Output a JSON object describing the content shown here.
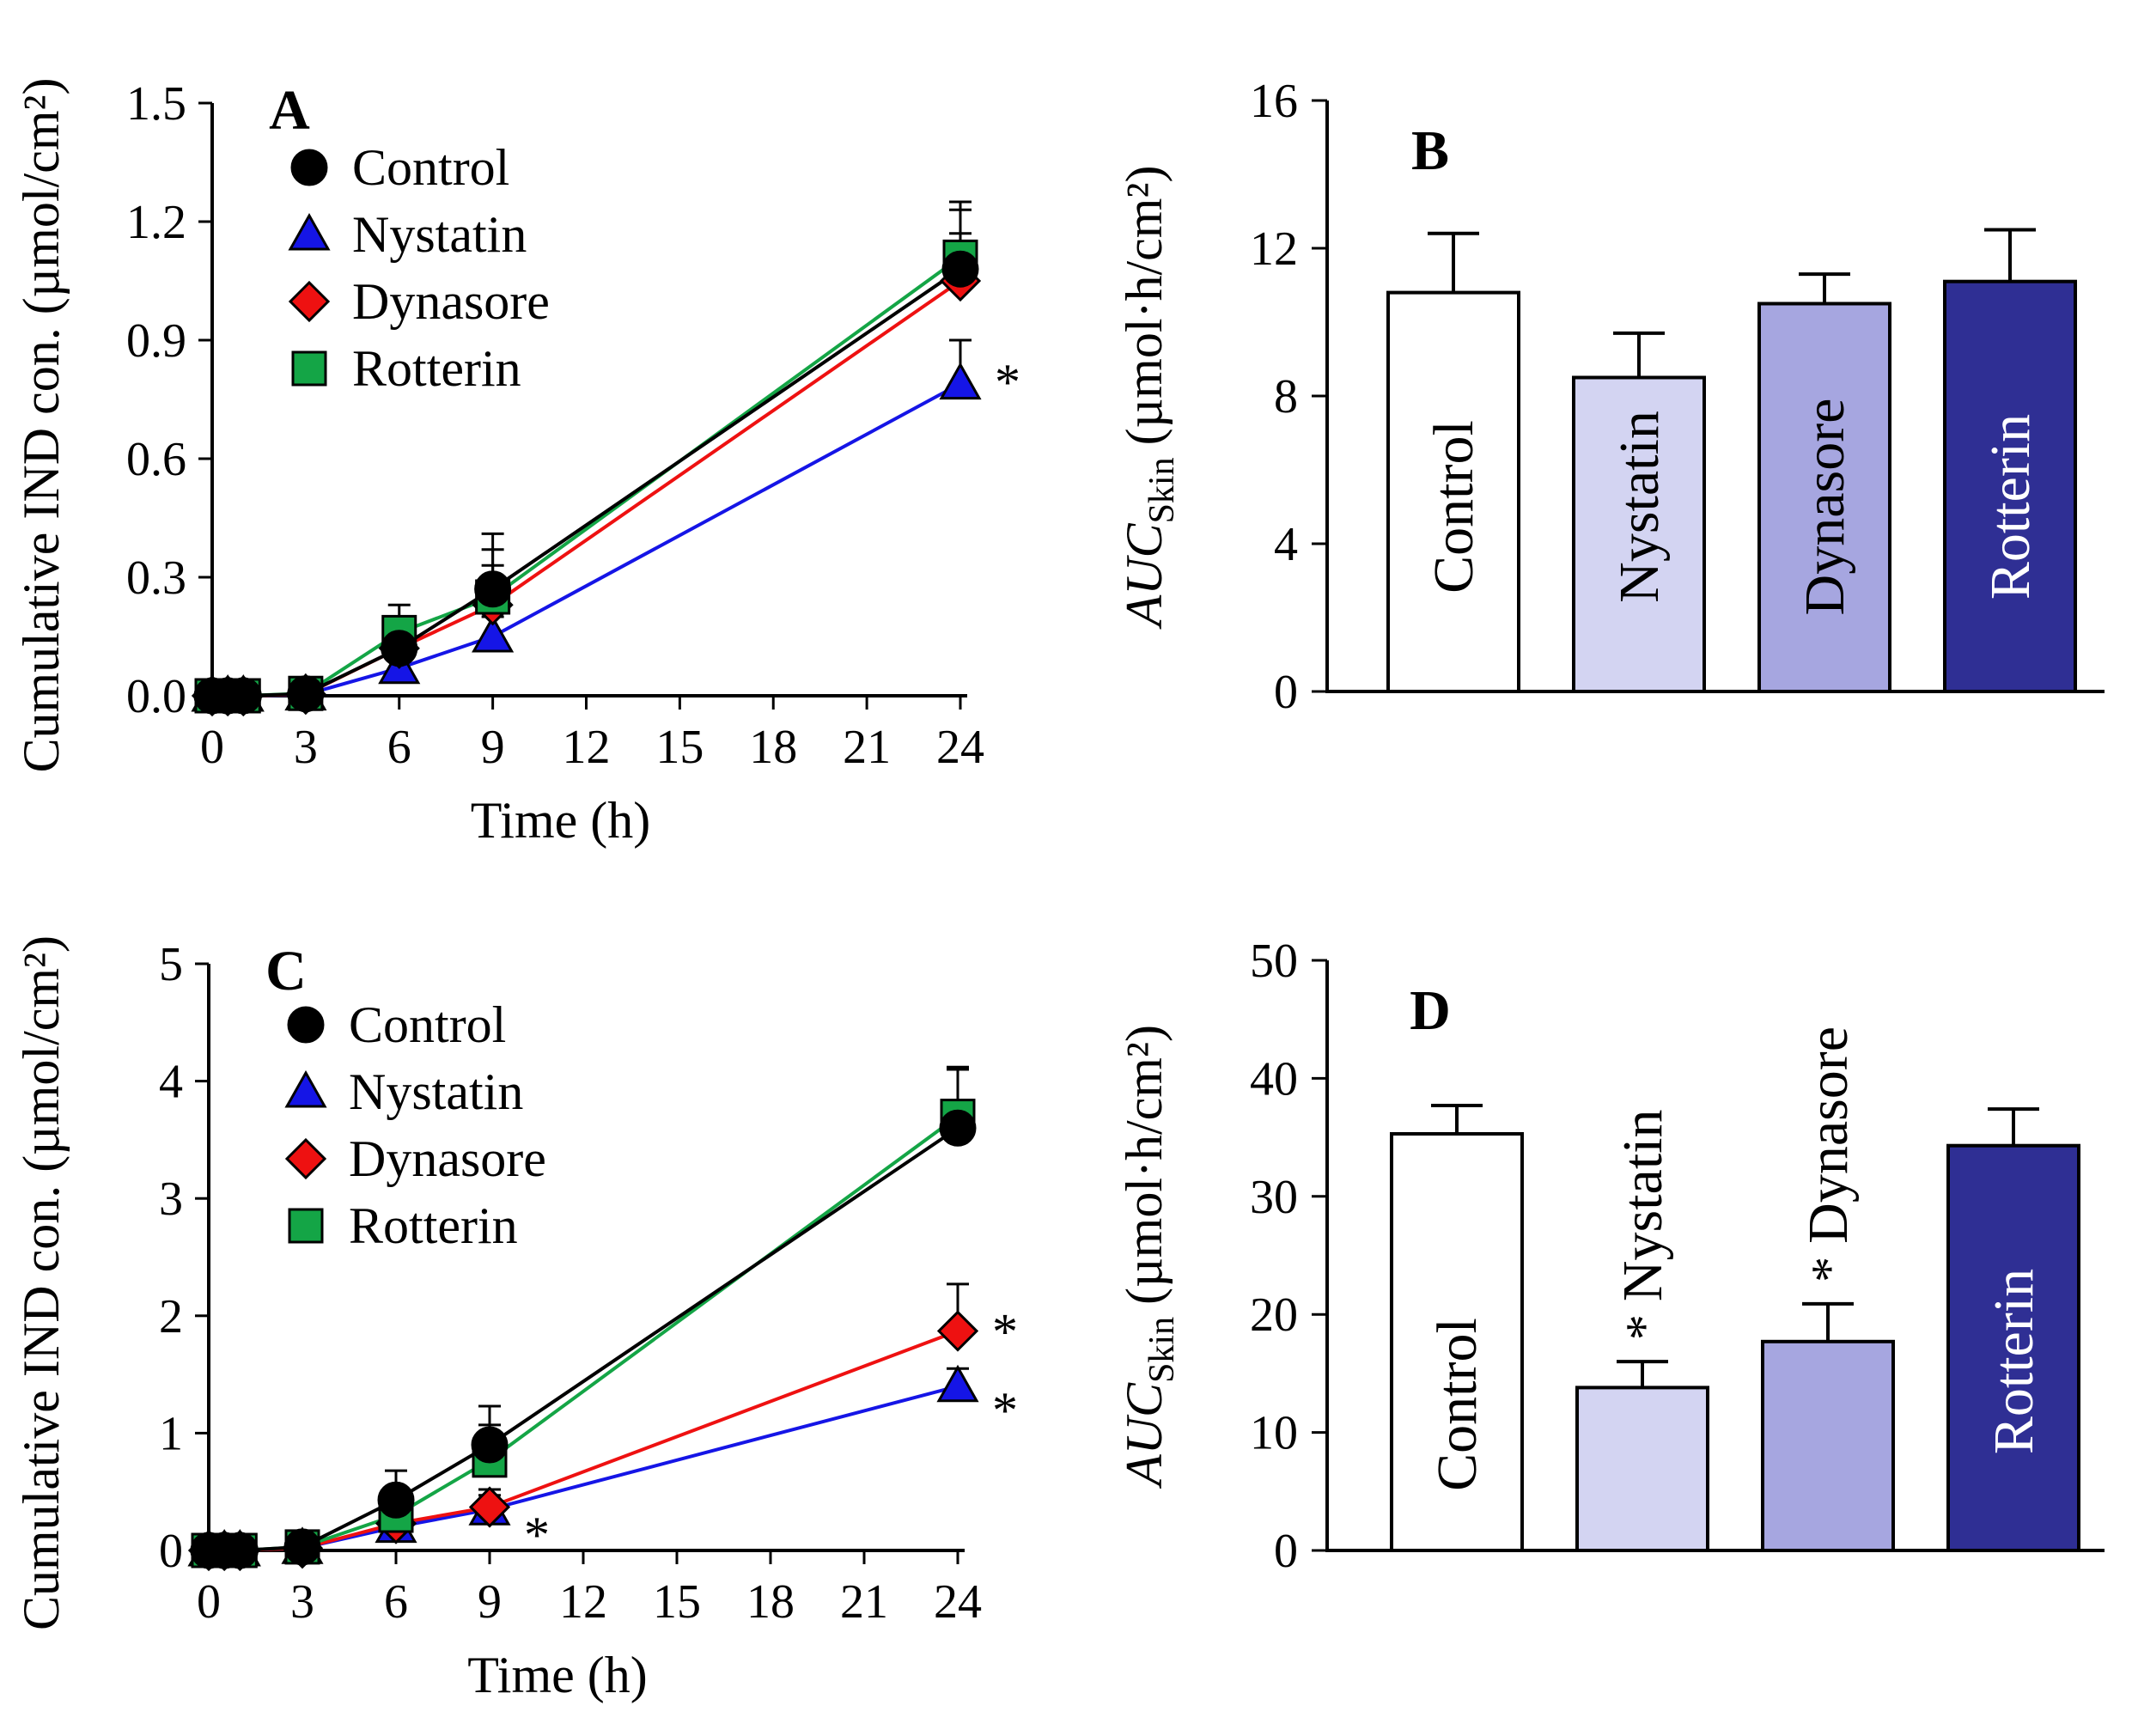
{
  "colors": {
    "control": "#000000",
    "nystatin": "#1515e6",
    "dynasore": "#ee1111",
    "rotterin": "#14a546",
    "bar_control": "#ffffff",
    "bar_nystatin": "#d3d4f2",
    "bar_dynasore": "#a6a6e0",
    "bar_rotterin": "#2f2f94"
  },
  "chart_data": [
    {
      "id": "A",
      "type": "line",
      "panel_label": "A",
      "xlabel": "Time (h)",
      "ylabel": "Cumulative IND con. (µmol/cm²)",
      "xlim": [
        0,
        24
      ],
      "ylim": [
        0,
        1.5
      ],
      "xticks": [
        "0",
        "3",
        "6",
        "9",
        "12",
        "15",
        "18",
        "21",
        "24"
      ],
      "yticks": [
        "0.0",
        "0.3",
        "0.6",
        "0.9",
        "1.2",
        "1.5"
      ],
      "x": [
        0,
        0.5,
        1,
        3,
        6,
        9,
        24
      ],
      "series": [
        {
          "name": "Control",
          "marker": "circle",
          "color": "control",
          "values": [
            0,
            0,
            0,
            0.005,
            0.12,
            0.27,
            1.08
          ],
          "errors": [
            0,
            0,
            0,
            0.005,
            0.08,
            0.14,
            0.17
          ]
        },
        {
          "name": "Nystatin",
          "marker": "triangle",
          "color": "nystatin",
          "values": [
            0,
            0,
            0,
            0.003,
            0.07,
            0.15,
            0.79
          ],
          "errors": [
            0,
            0,
            0,
            0.003,
            0.03,
            0.05,
            0.11
          ]
        },
        {
          "name": "Dynasore",
          "marker": "diamond",
          "color": "dynasore",
          "values": [
            0,
            0,
            0,
            0.004,
            0.12,
            0.23,
            1.05
          ],
          "errors": [
            0,
            0,
            0,
            0.004,
            0.06,
            0.1,
            0.12
          ]
        },
        {
          "name": "Rotterin",
          "marker": "square",
          "color": "rotterin",
          "values": [
            0,
            0,
            0,
            0.006,
            0.16,
            0.25,
            1.11
          ],
          "errors": [
            0,
            0,
            0,
            0.005,
            0.07,
            0.12,
            0.12
          ]
        }
      ],
      "annotations": [
        {
          "text": "*",
          "x": 24,
          "y": 0.82
        }
      ]
    },
    {
      "id": "B",
      "type": "bar",
      "panel_label": "B",
      "ylabel_main": "AUC",
      "ylabel_sub": "Skin",
      "ylabel_unit": "(µmol·h/cm²)",
      "ylim": [
        0,
        16
      ],
      "yticks": [
        "0",
        "4",
        "8",
        "12",
        "16"
      ],
      "categories": [
        "Control",
        "Nystatin",
        "Dynasore",
        "Rotterin"
      ],
      "values": [
        10.8,
        8.5,
        10.5,
        11.1
      ],
      "errors": [
        1.6,
        1.2,
        0.8,
        1.4
      ],
      "bar_colors": [
        "bar_control",
        "bar_nystatin",
        "bar_dynasore",
        "bar_rotterin"
      ],
      "significant": [
        false,
        false,
        false,
        false
      ]
    },
    {
      "id": "C",
      "type": "line",
      "panel_label": "C",
      "xlabel": "Time (h)",
      "ylabel": "Cumulative IND con. (µmol/cm²)",
      "xlim": [
        0,
        24
      ],
      "ylim": [
        0,
        5
      ],
      "xticks": [
        "0",
        "3",
        "6",
        "9",
        "12",
        "15",
        "18",
        "21",
        "24"
      ],
      "yticks": [
        "0",
        "1",
        "2",
        "3",
        "4",
        "5"
      ],
      "x": [
        0,
        0.5,
        1,
        3,
        6,
        9,
        24
      ],
      "series": [
        {
          "name": "Control",
          "marker": "circle",
          "color": "control",
          "values": [
            0,
            0,
            0,
            0.03,
            0.43,
            0.9,
            3.6
          ],
          "errors": [
            0,
            0,
            0,
            0.02,
            0.25,
            0.33,
            0.5
          ]
        },
        {
          "name": "Nystatin",
          "marker": "triangle",
          "color": "nystatin",
          "values": [
            0,
            0,
            0,
            0.02,
            0.2,
            0.35,
            1.4
          ],
          "errors": [
            0,
            0,
            0,
            0.02,
            0.08,
            0.12,
            0.15
          ]
        },
        {
          "name": "Dynasore",
          "marker": "diamond",
          "color": "dynasore",
          "values": [
            0,
            0,
            0,
            0.02,
            0.23,
            0.37,
            1.87
          ],
          "errors": [
            0,
            0,
            0,
            0.02,
            0.1,
            0.15,
            0.4
          ]
        },
        {
          "name": "Rotterin",
          "marker": "square",
          "color": "rotterin",
          "values": [
            0,
            0,
            0,
            0.03,
            0.3,
            0.77,
            3.7
          ],
          "errors": [
            0,
            0,
            0,
            0.02,
            0.15,
            0.3,
            0.42
          ]
        }
      ],
      "annotations": [
        {
          "text": "*",
          "x": 24,
          "y": 1.95
        },
        {
          "text": "*",
          "x": 24,
          "y": 1.28
        },
        {
          "text": "*",
          "x": 9,
          "y": 0.22
        }
      ]
    },
    {
      "id": "D",
      "type": "bar",
      "panel_label": "D",
      "ylabel_main": "AUC",
      "ylabel_sub": "Skin",
      "ylabel_unit": "(µmol·h/cm²)",
      "ylim": [
        0,
        50
      ],
      "yticks": [
        "0",
        "10",
        "20",
        "30",
        "40",
        "50"
      ],
      "categories": [
        "Control",
        "Nystatin",
        "Dynasore",
        "Rotterin"
      ],
      "values": [
        35.3,
        13.8,
        17.7,
        34.3
      ],
      "errors": [
        2.4,
        2.2,
        3.2,
        3.1
      ],
      "bar_colors": [
        "bar_control",
        "bar_nystatin",
        "bar_dynasore",
        "bar_rotterin"
      ],
      "significant": [
        false,
        true,
        true,
        false
      ]
    }
  ]
}
